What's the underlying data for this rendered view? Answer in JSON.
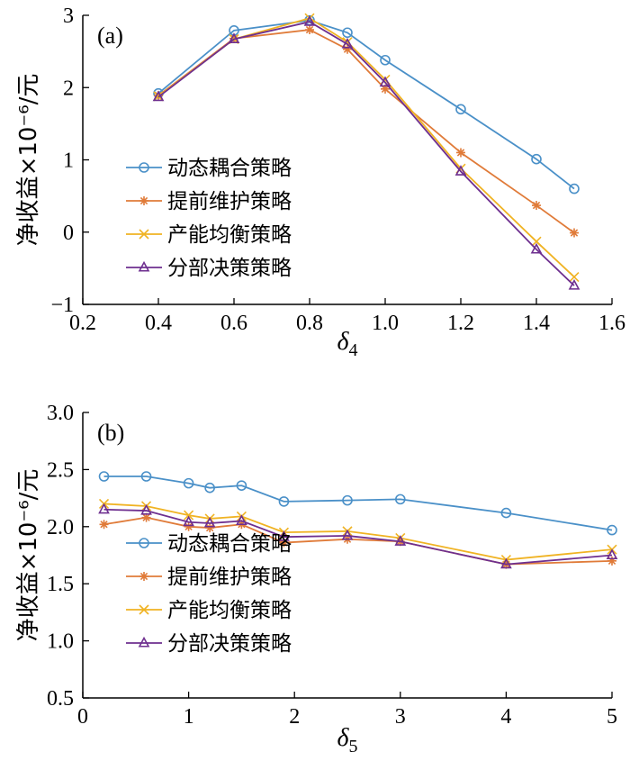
{
  "chart_data": [
    {
      "type": "line",
      "panel_label": "(a)",
      "xlabel": "δ",
      "xlabel_sub": "4",
      "ylabel": "净收益×10⁻⁶/元",
      "xlim": [
        0.2,
        1.6
      ],
      "ylim": [
        -1,
        3
      ],
      "xticks": [
        "0.2",
        "0.4",
        "0.6",
        "0.8",
        "1.0",
        "1.2",
        "1.4",
        "1.6"
      ],
      "yticks": [
        "−1",
        "0",
        "1",
        "2",
        "3"
      ],
      "legend_position": "lower-left",
      "x": [
        0.4,
        0.6,
        0.8,
        0.9,
        1.0,
        1.2,
        1.4,
        1.5
      ],
      "series": [
        {
          "name": "动态耦合策略",
          "color": "#4a90c8",
          "marker": "circle",
          "values": [
            1.92,
            2.79,
            2.93,
            2.76,
            2.38,
            1.7,
            1.01,
            0.6
          ]
        },
        {
          "name": "提前维护策略",
          "color": "#e07b39",
          "marker": "asterisk",
          "values": [
            1.89,
            2.68,
            2.8,
            2.53,
            1.98,
            1.1,
            0.37,
            -0.01
          ]
        },
        {
          "name": "产能均衡策略",
          "color": "#f0b323",
          "marker": "x",
          "values": [
            1.88,
            2.67,
            2.96,
            2.63,
            2.11,
            0.88,
            -0.13,
            -0.62
          ]
        },
        {
          "name": "分部决策策略",
          "color": "#6e2f8f",
          "marker": "triangle",
          "values": [
            1.87,
            2.67,
            2.91,
            2.6,
            2.07,
            0.84,
            -0.24,
            -0.74
          ]
        }
      ]
    },
    {
      "type": "line",
      "panel_label": "(b)",
      "xlabel": "δ",
      "xlabel_sub": "5",
      "ylabel": "净收益×10⁻⁶/元",
      "xlim": [
        0,
        5
      ],
      "ylim": [
        0.5,
        3.0
      ],
      "xticks": [
        "0",
        "1",
        "2",
        "3",
        "4",
        "5"
      ],
      "yticks": [
        "0.5",
        "1.0",
        "1.5",
        "2.0",
        "2.5",
        "3.0"
      ],
      "legend_position": "lower-left",
      "x": [
        0.2,
        0.6,
        1.0,
        1.2,
        1.5,
        1.9,
        2.5,
        3.0,
        4.0,
        5.0
      ],
      "series": [
        {
          "name": "动态耦合策略",
          "color": "#4a90c8",
          "marker": "circle",
          "values": [
            2.44,
            2.44,
            2.38,
            2.34,
            2.36,
            2.22,
            2.23,
            2.24,
            2.12,
            1.97
          ]
        },
        {
          "name": "提前维护策略",
          "color": "#e07b39",
          "marker": "asterisk",
          "values": [
            2.02,
            2.08,
            2.0,
            1.99,
            2.02,
            1.86,
            1.89,
            1.87,
            1.67,
            1.7
          ]
        },
        {
          "name": "产能均衡策略",
          "color": "#f0b323",
          "marker": "x",
          "values": [
            2.2,
            2.18,
            2.1,
            2.07,
            2.09,
            1.95,
            1.96,
            1.9,
            1.71,
            1.8
          ]
        },
        {
          "name": "分部决策策略",
          "color": "#6e2f8f",
          "marker": "triangle",
          "values": [
            2.15,
            2.14,
            2.04,
            2.03,
            2.05,
            1.91,
            1.92,
            1.87,
            1.67,
            1.75
          ]
        }
      ]
    }
  ]
}
